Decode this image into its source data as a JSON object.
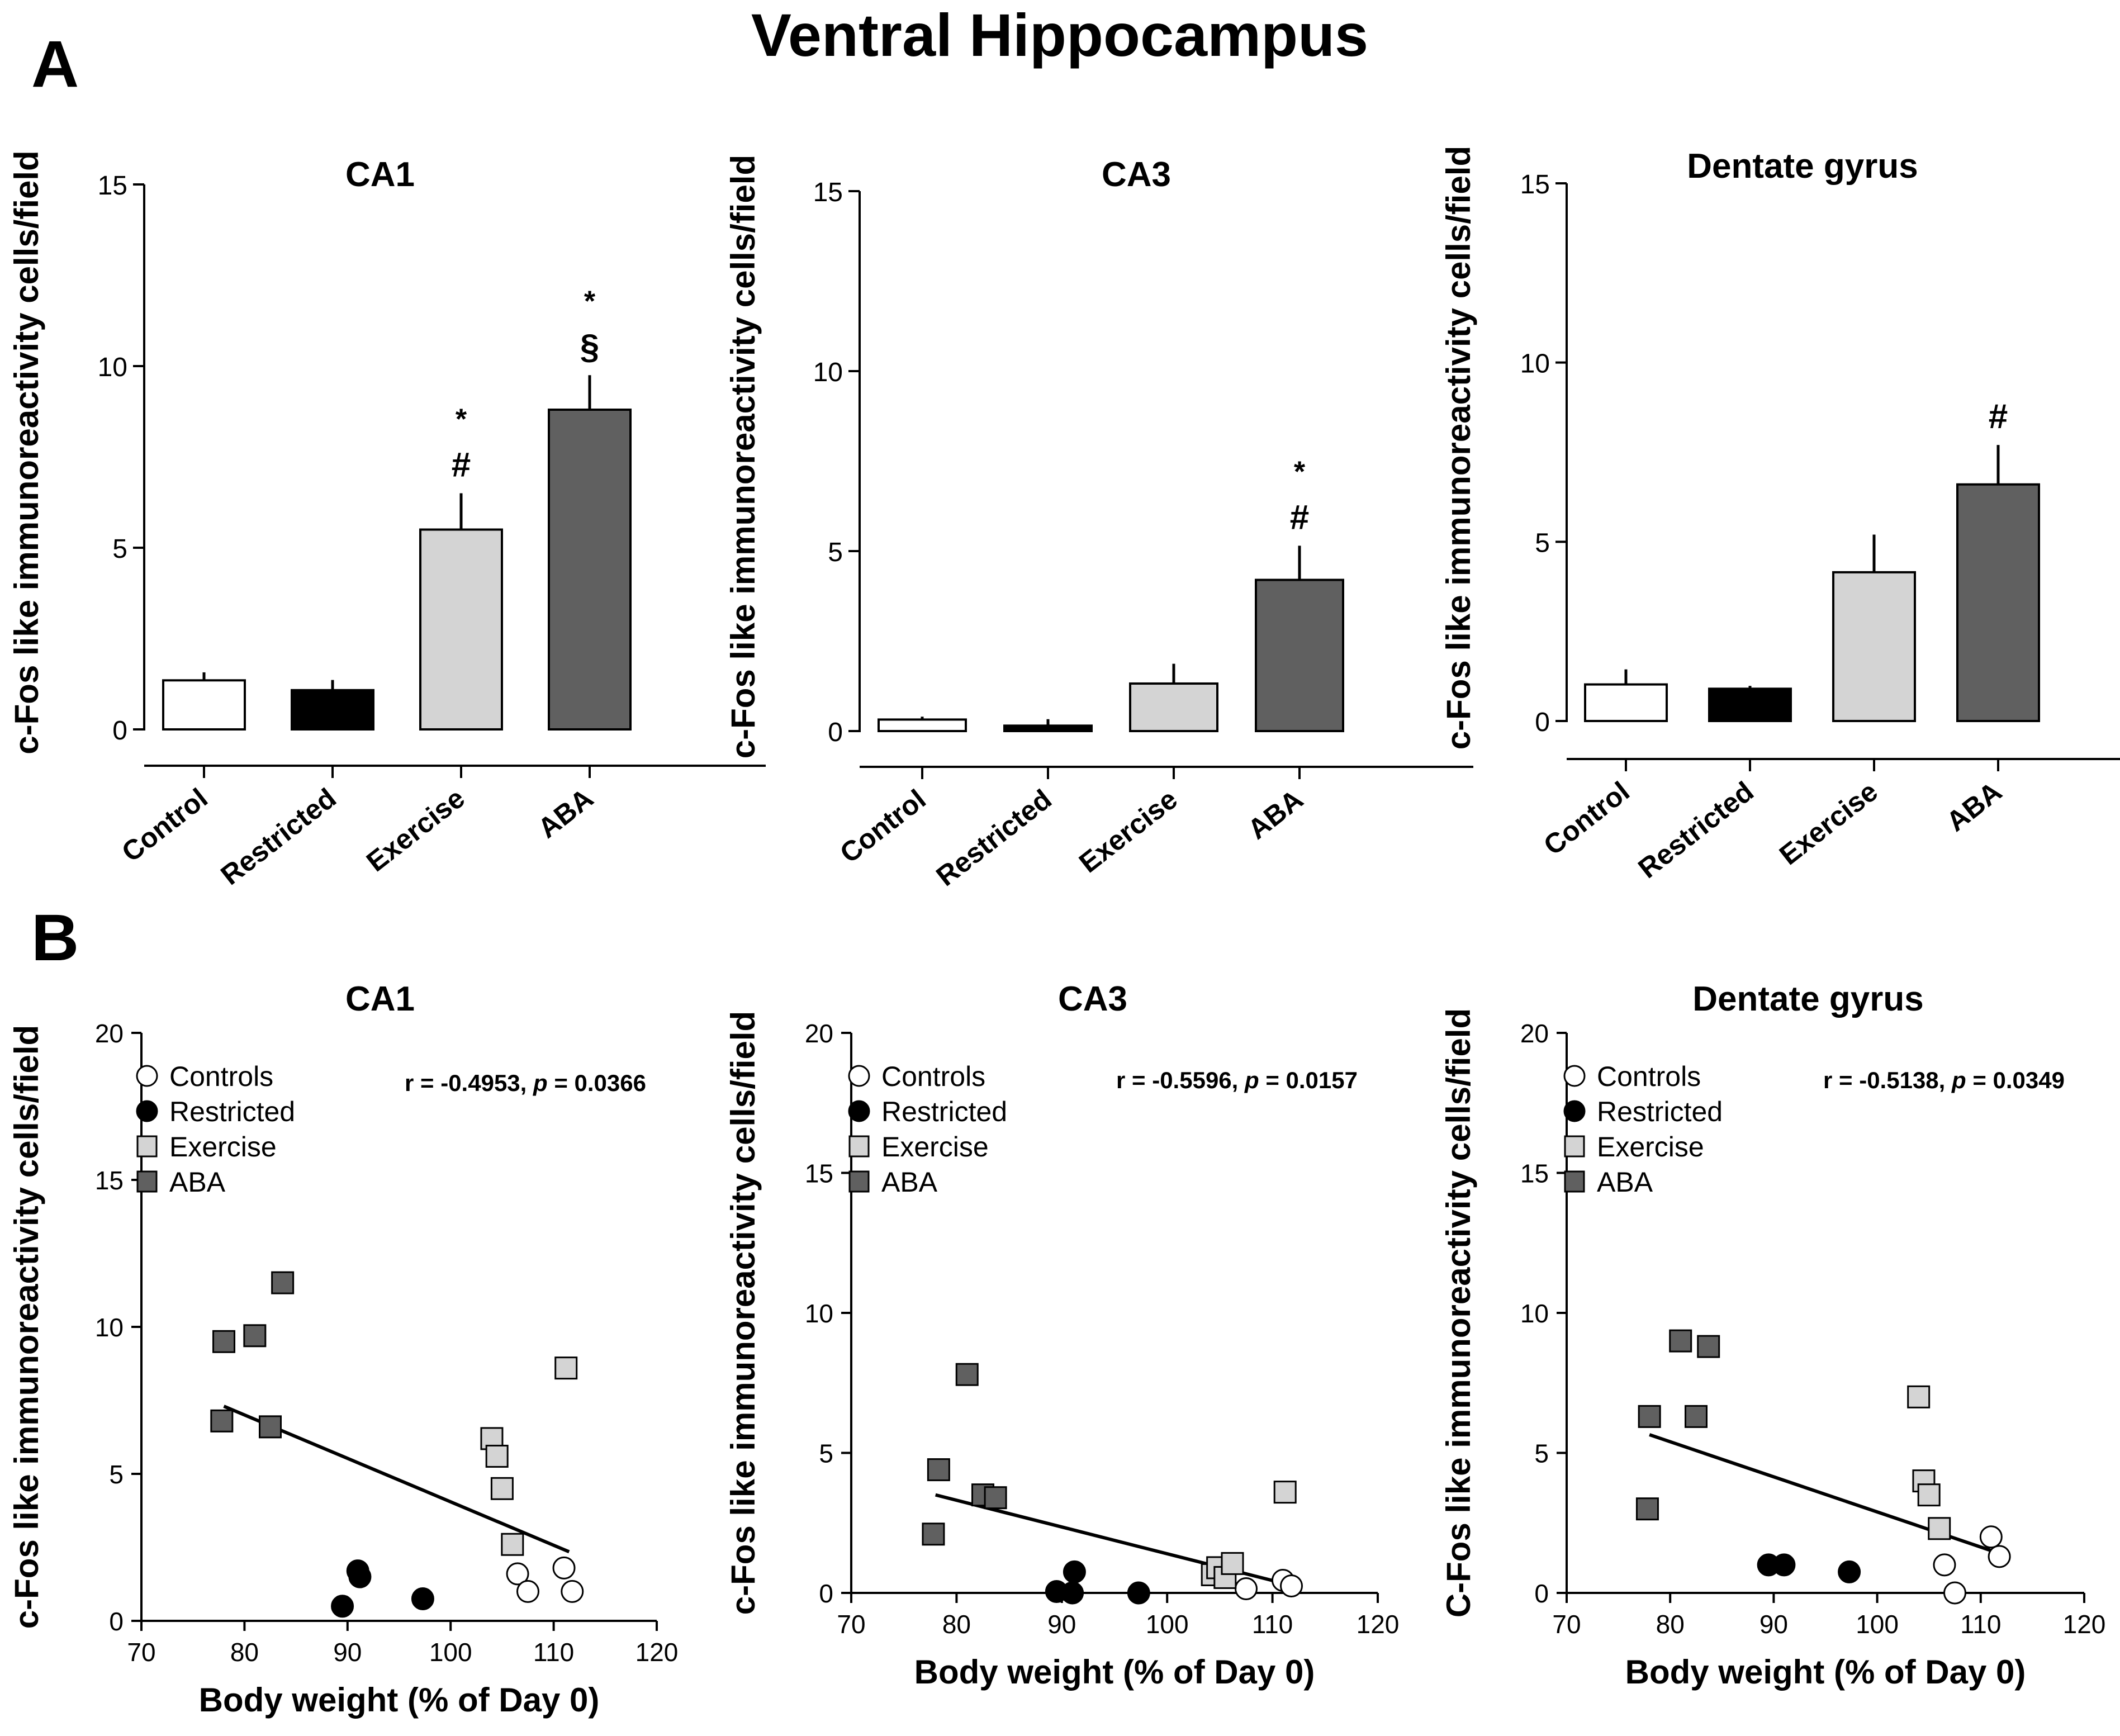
{
  "figure": {
    "title": "Ventral Hippocampus",
    "panel_a_label": "A",
    "panel_b_label": "B"
  },
  "colors": {
    "Control": "#ffffff",
    "Restricted": "#000000",
    "Exercise": "#d4d4d4",
    "ABA": "#606060",
    "axis": "#000000"
  },
  "chart_data": [
    {
      "type": "bar",
      "panel": "A",
      "title": "CA1",
      "ylabel": "c-Fos like immunoreactivity cells/field",
      "xlabel": "",
      "categories": [
        "Control",
        "Restricted",
        "Exercise",
        "ABA"
      ],
      "values": [
        1.35,
        1.08,
        5.5,
        8.8
      ],
      "errors": [
        0.22,
        0.28,
        1.0,
        0.95
      ],
      "annotations": [
        [],
        [],
        [
          "*",
          "#"
        ],
        [
          "*",
          "§"
        ]
      ],
      "ylim": [
        0,
        15
      ],
      "yticks": [
        0,
        5,
        10,
        15
      ],
      "grid": false
    },
    {
      "type": "bar",
      "panel": "A",
      "title": "CA3",
      "ylabel": "c-Fos  like immunoreactivity cells/field",
      "xlabel": "",
      "categories": [
        "Control",
        "Restricted",
        "Exercise",
        "ABA"
      ],
      "values": [
        0.32,
        0.15,
        1.32,
        4.2
      ],
      "errors": [
        0.08,
        0.18,
        0.55,
        0.95
      ],
      "annotations": [
        [],
        [],
        [],
        [
          "*",
          "#"
        ]
      ],
      "ylim": [
        0,
        15
      ],
      "yticks": [
        0,
        5,
        10,
        15
      ],
      "grid": false
    },
    {
      "type": "bar",
      "panel": "A",
      "title": "Dentate gyrus",
      "ylabel": "c-Fos like immunoreactivity cells/field",
      "xlabel": "",
      "categories": [
        "Control",
        "Restricted",
        "Exercise",
        "ABA"
      ],
      "values": [
        1.02,
        0.9,
        4.15,
        6.6
      ],
      "errors": [
        0.42,
        0.08,
        1.05,
        1.1
      ],
      "annotations": [
        [],
        [],
        [],
        [
          "#"
        ]
      ],
      "ylim": [
        0,
        15
      ],
      "yticks": [
        0,
        5,
        10,
        15
      ],
      "grid": false
    },
    {
      "type": "scatter",
      "panel": "B",
      "title": "CA1",
      "ylabel": "c-Fos like immunoreactivity cells/field",
      "xlabel": "Body weight (% of Day 0)",
      "xlim": [
        70,
        120
      ],
      "ylim": [
        0,
        20
      ],
      "xticks": [
        70,
        80,
        90,
        100,
        110,
        120
      ],
      "yticks": [
        0,
        5,
        10,
        15,
        20
      ],
      "stat_r": "r = -0.4953,",
      "stat_p_label": "p",
      "stat_p_value": "= 0.0366",
      "legend": [
        "Controls",
        "Restricted",
        "Exercise",
        "ABA"
      ],
      "legend_position": "top-left",
      "regression": {
        "x": [
          78,
          111.5
        ],
        "y": [
          7.3,
          2.35
        ]
      },
      "series": [
        {
          "name": "Controls",
          "marker": "circle",
          "x": [
            106.5,
            107.5,
            111,
            111.8
          ],
          "y": [
            1.6,
            1.0,
            1.8,
            1.0
          ]
        },
        {
          "name": "Restricted",
          "marker": "circle",
          "x": [
            89.5,
            91,
            91.2,
            97.3
          ],
          "y": [
            0.5,
            1.7,
            1.5,
            0.75
          ]
        },
        {
          "name": "Exercise",
          "marker": "square",
          "x": [
            104,
            104.5,
            105,
            106,
            111.2
          ],
          "y": [
            6.2,
            5.6,
            4.5,
            2.6,
            8.6
          ]
        },
        {
          "name": "ABA",
          "marker": "square",
          "x": [
            77.8,
            78,
            81,
            82.5,
            83.7
          ],
          "y": [
            6.8,
            9.5,
            9.7,
            6.6,
            11.5
          ]
        }
      ]
    },
    {
      "type": "scatter",
      "panel": "B",
      "title": "CA3",
      "ylabel": "c-Fos like immunoreactivity cells/field",
      "xlabel": "Body weight (% of Day 0)",
      "xlim": [
        70,
        120
      ],
      "ylim": [
        0,
        20
      ],
      "xticks": [
        70,
        80,
        90,
        100,
        110,
        120
      ],
      "yticks": [
        0,
        5,
        10,
        15,
        20
      ],
      "stat_r": "r = -0.5596,",
      "stat_p_label": "p",
      "stat_p_value": "= 0.0157",
      "legend": [
        "Controls",
        "Restricted",
        "Exercise",
        "ABA"
      ],
      "legend_position": "top-left",
      "regression": {
        "x": [
          78,
          111.5
        ],
        "y": [
          3.5,
          0.3
        ]
      },
      "series": [
        {
          "name": "Controls",
          "marker": "circle",
          "x": [
            107.5,
            111,
            111.8
          ],
          "y": [
            0.15,
            0.45,
            0.25
          ]
        },
        {
          "name": "Restricted",
          "marker": "circle",
          "x": [
            89.5,
            91,
            91.2,
            97.3
          ],
          "y": [
            0.05,
            0.0,
            0.75,
            0.0
          ]
        },
        {
          "name": "Exercise",
          "marker": "square",
          "x": [
            104.3,
            104.8,
            105.5,
            106.2,
            111.2
          ],
          "y": [
            0.65,
            0.9,
            0.55,
            1.05,
            3.6
          ]
        },
        {
          "name": "ABA",
          "marker": "square",
          "x": [
            77.8,
            78.3,
            81,
            82.5,
            83.7
          ],
          "y": [
            2.1,
            4.4,
            7.8,
            3.5,
            3.4
          ]
        }
      ]
    },
    {
      "type": "scatter",
      "panel": "B",
      "title": "Dentate gyrus",
      "ylabel": "C-Fos like immunoreactivity cells/field",
      "xlabel": "Body weight (% of Day 0)",
      "xlim": [
        70,
        120
      ],
      "ylim": [
        0,
        20
      ],
      "xticks": [
        70,
        80,
        90,
        100,
        110,
        120
      ],
      "yticks": [
        0,
        5,
        10,
        15,
        20
      ],
      "stat_r": "r = -0.5138,",
      "stat_p_label": "p",
      "stat_p_value": "= 0.0349",
      "legend": [
        "Controls",
        "Restricted",
        "Exercise",
        "ABA"
      ],
      "legend_position": "top-left",
      "regression": {
        "x": [
          78,
          111.5
        ],
        "y": [
          5.65,
          1.45
        ]
      },
      "series": [
        {
          "name": "Controls",
          "marker": "circle",
          "x": [
            106.5,
            107.5,
            111,
            111.8
          ],
          "y": [
            1.0,
            0.0,
            2.0,
            1.3
          ]
        },
        {
          "name": "Restricted",
          "marker": "circle",
          "x": [
            89.5,
            91,
            97.3
          ],
          "y": [
            1.0,
            1.0,
            0.75
          ]
        },
        {
          "name": "Exercise",
          "marker": "square",
          "x": [
            104,
            104.5,
            105,
            106
          ],
          "y": [
            7.0,
            4.0,
            3.5,
            2.3
          ]
        },
        {
          "name": "ABA",
          "marker": "square",
          "x": [
            77.8,
            78,
            81,
            82.5,
            83.7
          ],
          "y": [
            3.0,
            6.3,
            9.0,
            6.3,
            8.8
          ]
        }
      ]
    }
  ]
}
